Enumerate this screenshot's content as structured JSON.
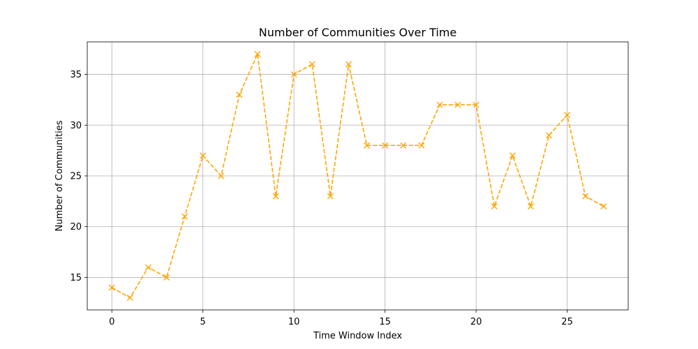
{
  "chart_data": {
    "type": "line",
    "title": "Number of Communities Over Time",
    "xlabel": "Time Window Index",
    "ylabel": "Number of Communities",
    "x": [
      0,
      1,
      2,
      3,
      4,
      5,
      6,
      7,
      8,
      9,
      10,
      11,
      12,
      13,
      14,
      15,
      16,
      17,
      18,
      19,
      20,
      21,
      22,
      23,
      24,
      25,
      26,
      27
    ],
    "series": [
      {
        "values": [
          14,
          13,
          16,
          15,
          21,
          27,
          25,
          33,
          37,
          23,
          35,
          36,
          23,
          36,
          28,
          28,
          28,
          28,
          32,
          32,
          32,
          22,
          27,
          22,
          29,
          31,
          23,
          22
        ],
        "color": "#ffa500",
        "line_style": "dashed",
        "marker": "x"
      }
    ],
    "xlim": [
      -1.35,
      28.35
    ],
    "ylim": [
      11.8,
      38.2
    ],
    "xticks": [
      0,
      5,
      10,
      15,
      20,
      25
    ],
    "yticks": [
      15,
      20,
      25,
      30,
      35
    ],
    "grid": true
  }
}
